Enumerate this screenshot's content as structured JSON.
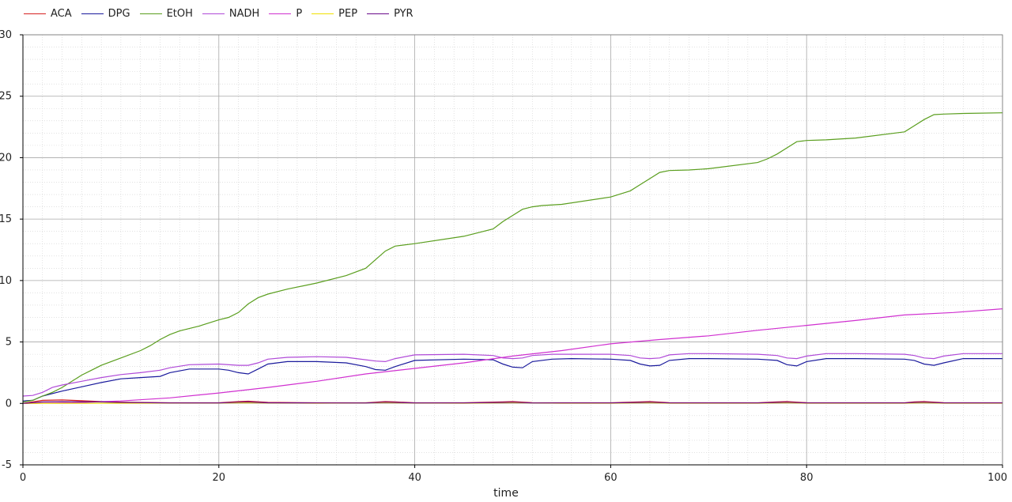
{
  "chart_data": {
    "type": "line",
    "xlabel": "time",
    "ylabel": "",
    "xlim": [
      0,
      100
    ],
    "ylim": [
      -5,
      30
    ],
    "xticks": [
      0,
      20,
      40,
      60,
      80,
      100
    ],
    "yticks": [
      -5,
      0,
      5,
      10,
      15,
      20,
      25,
      30
    ],
    "grid": true,
    "legend_position": "top-left",
    "series": [
      {
        "name": "ACA",
        "color": "#d62020",
        "x": [
          0,
          2,
          4,
          6,
          8,
          10,
          15,
          20,
          22,
          23,
          25,
          30,
          35,
          37,
          38,
          40,
          45,
          49,
          50,
          52,
          55,
          60,
          63,
          64,
          66,
          70,
          75,
          77,
          78,
          80,
          85,
          90,
          91,
          92,
          94,
          100
        ],
        "y": [
          0,
          0.25,
          0.28,
          0.22,
          0.15,
          0.1,
          0.05,
          0.05,
          0.15,
          0.18,
          0.08,
          0.05,
          0.05,
          0.15,
          0.12,
          0.05,
          0.05,
          0.12,
          0.15,
          0.06,
          0.05,
          0.05,
          0.12,
          0.15,
          0.06,
          0.05,
          0.05,
          0.12,
          0.15,
          0.06,
          0.05,
          0.05,
          0.12,
          0.15,
          0.06,
          0.05
        ]
      },
      {
        "name": "DPG",
        "color": "#1a1a9c",
        "x": [
          0,
          1,
          2,
          4,
          6,
          8,
          10,
          12,
          14,
          15,
          17,
          20,
          21,
          22,
          23,
          24,
          25,
          27,
          30,
          33,
          35,
          36,
          37,
          38,
          40,
          45,
          48,
          49,
          50,
          51,
          52,
          54,
          56,
          60,
          62,
          63,
          64,
          65,
          66,
          68,
          70,
          75,
          77,
          78,
          79,
          80,
          82,
          85,
          90,
          91,
          92,
          93,
          94,
          96,
          100
        ],
        "y": [
          0.2,
          0.25,
          0.6,
          1.0,
          1.35,
          1.7,
          2.0,
          2.1,
          2.2,
          2.5,
          2.8,
          2.8,
          2.7,
          2.5,
          2.4,
          2.8,
          3.2,
          3.4,
          3.4,
          3.3,
          3.0,
          2.75,
          2.7,
          3.0,
          3.5,
          3.6,
          3.55,
          3.2,
          2.95,
          2.9,
          3.4,
          3.6,
          3.65,
          3.6,
          3.5,
          3.2,
          3.05,
          3.1,
          3.5,
          3.65,
          3.65,
          3.6,
          3.5,
          3.15,
          3.05,
          3.4,
          3.65,
          3.65,
          3.6,
          3.5,
          3.2,
          3.1,
          3.3,
          3.65,
          3.65
        ]
      },
      {
        "name": "EtOH",
        "color": "#5a9e1e",
        "x": [
          0,
          1,
          2,
          3,
          4,
          5,
          6,
          7,
          8,
          10,
          12,
          13,
          14,
          15,
          16,
          18,
          20,
          21,
          22,
          23,
          24,
          25,
          27,
          30,
          33,
          35,
          36,
          37,
          38,
          40,
          45,
          48,
          49,
          50,
          51,
          52,
          53,
          55,
          60,
          62,
          63,
          64,
          65,
          66,
          68,
          70,
          75,
          76,
          77,
          78,
          79,
          80,
          82,
          85,
          90,
          91,
          92,
          93,
          94,
          96,
          100
        ],
        "y": [
          0.1,
          0.25,
          0.6,
          0.9,
          1.3,
          1.8,
          2.3,
          2.7,
          3.1,
          3.7,
          4.3,
          4.7,
          5.2,
          5.6,
          5.9,
          6.3,
          6.8,
          7.0,
          7.4,
          8.1,
          8.6,
          8.9,
          9.3,
          9.8,
          10.4,
          11.0,
          11.7,
          12.4,
          12.8,
          13.0,
          13.6,
          14.2,
          14.8,
          15.3,
          15.8,
          16.0,
          16.1,
          16.2,
          16.8,
          17.3,
          17.8,
          18.3,
          18.8,
          18.95,
          19.0,
          19.1,
          19.6,
          19.9,
          20.3,
          20.8,
          21.3,
          21.4,
          21.45,
          21.6,
          22.1,
          22.6,
          23.1,
          23.5,
          23.55,
          23.6,
          23.65
        ]
      },
      {
        "name": "NADH",
        "color": "#b04ad8",
        "x": [
          0,
          1,
          2,
          3,
          4,
          6,
          8,
          10,
          12,
          14,
          15,
          17,
          20,
          22,
          23,
          24,
          25,
          27,
          30,
          33,
          35,
          36,
          37,
          38,
          40,
          45,
          48,
          49,
          50,
          51,
          52,
          54,
          56,
          60,
          62,
          63,
          64,
          65,
          66,
          68,
          70,
          75,
          77,
          78,
          79,
          80,
          82,
          85,
          90,
          91,
          92,
          93,
          94,
          96,
          100
        ],
        "y": [
          0.6,
          0.65,
          0.9,
          1.3,
          1.5,
          1.8,
          2.1,
          2.35,
          2.5,
          2.7,
          2.9,
          3.15,
          3.2,
          3.1,
          3.1,
          3.3,
          3.6,
          3.75,
          3.8,
          3.75,
          3.55,
          3.45,
          3.4,
          3.65,
          3.95,
          4.0,
          3.9,
          3.7,
          3.65,
          3.7,
          3.9,
          4.0,
          4.0,
          4.0,
          3.9,
          3.7,
          3.65,
          3.7,
          3.95,
          4.05,
          4.05,
          4.0,
          3.9,
          3.7,
          3.65,
          3.85,
          4.05,
          4.05,
          4.0,
          3.9,
          3.7,
          3.65,
          3.85,
          4.05,
          4.05
        ]
      },
      {
        "name": "P",
        "color": "#d030d0",
        "x": [
          0,
          5,
          10,
          15,
          20,
          25,
          30,
          35,
          40,
          45,
          50,
          55,
          60,
          65,
          70,
          75,
          80,
          85,
          90,
          95,
          100
        ],
        "y": [
          0,
          0.05,
          0.2,
          0.45,
          0.85,
          1.3,
          1.8,
          2.4,
          2.85,
          3.3,
          3.85,
          4.3,
          4.85,
          5.2,
          5.5,
          5.95,
          6.35,
          6.75,
          7.2,
          7.4,
          7.7
        ]
      },
      {
        "name": "PEP",
        "color": "#f0e000",
        "x": [
          0,
          10,
          20,
          23,
          25,
          30,
          37,
          40,
          45,
          50,
          55,
          60,
          64,
          66,
          70,
          75,
          78,
          80,
          85,
          90,
          92,
          94,
          100
        ],
        "y": [
          0,
          0.02,
          0.03,
          0.06,
          0.03,
          0.02,
          0.06,
          0.03,
          0.02,
          0.06,
          0.02,
          0.02,
          0.06,
          0.02,
          0.02,
          0.02,
          0.06,
          0.02,
          0.02,
          0.02,
          0.06,
          0.02,
          0.02
        ]
      },
      {
        "name": "PYR",
        "color": "#6a0a8a",
        "x": [
          0,
          2,
          4,
          8,
          10,
          15,
          20,
          22,
          23,
          25,
          30,
          35,
          37,
          38,
          40,
          45,
          49,
          50,
          52,
          55,
          60,
          63,
          64,
          66,
          70,
          75,
          77,
          78,
          80,
          85,
          90,
          91,
          92,
          94,
          100
        ],
        "y": [
          0,
          0.12,
          0.15,
          0.12,
          0.08,
          0.04,
          0.04,
          0.1,
          0.12,
          0.05,
          0.04,
          0.04,
          0.1,
          0.08,
          0.04,
          0.04,
          0.08,
          0.1,
          0.04,
          0.04,
          0.04,
          0.08,
          0.1,
          0.04,
          0.04,
          0.04,
          0.08,
          0.1,
          0.04,
          0.04,
          0.04,
          0.08,
          0.1,
          0.04,
          0.04
        ]
      }
    ]
  }
}
